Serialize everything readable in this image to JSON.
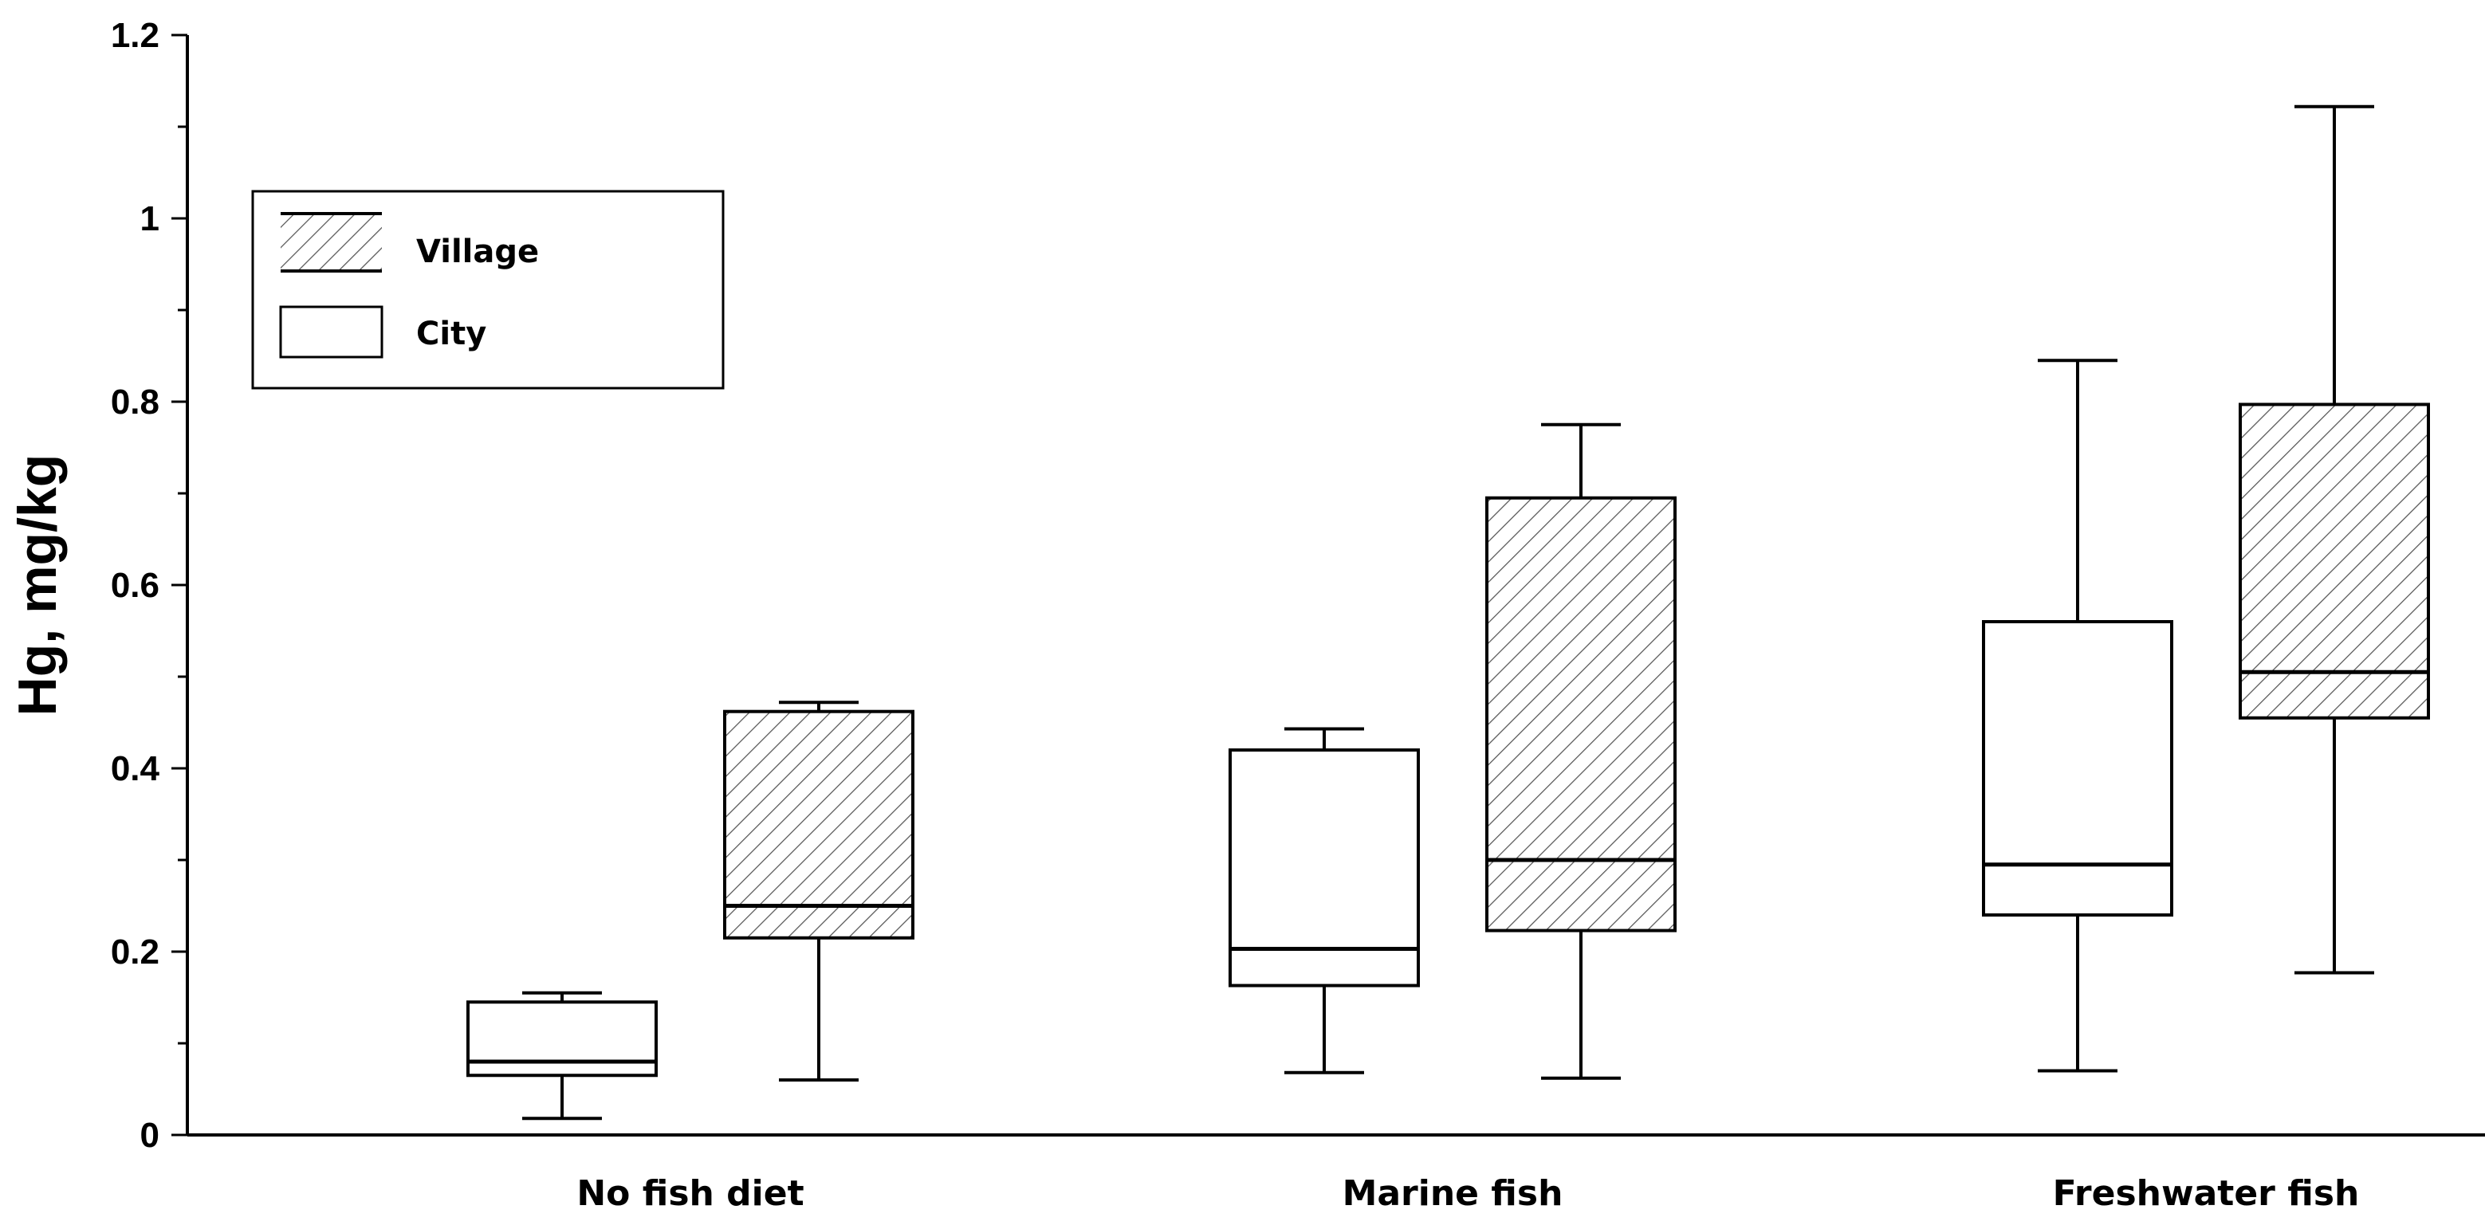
{
  "chart_data": {
    "type": "box",
    "ylabel": "Hg, mg/kg",
    "xlabel": "",
    "ylim": [
      0,
      1.2
    ],
    "yticks": [
      "0",
      "0.2",
      "0.4",
      "0.6",
      "0.8",
      "1",
      "1.2"
    ],
    "categories": [
      "No fish diet",
      "Marine fish",
      "Freshwater fish"
    ],
    "legend": {
      "position": "top-left",
      "entries": [
        {
          "name": "Village",
          "fill": "hatched"
        },
        {
          "name": "City",
          "fill": "empty"
        }
      ]
    },
    "series": [
      {
        "name": "City",
        "boxes": [
          {
            "min": 0.018,
            "q1": 0.065,
            "median": 0.08,
            "q3": 0.145,
            "max": 0.155
          },
          {
            "min": 0.068,
            "q1": 0.163,
            "median": 0.203,
            "q3": 0.42,
            "max": 0.443
          },
          {
            "min": 0.07,
            "q1": 0.24,
            "median": 0.295,
            "q3": 0.56,
            "max": 0.845
          }
        ]
      },
      {
        "name": "Village",
        "boxes": [
          {
            "min": 0.06,
            "q1": 0.215,
            "median": 0.25,
            "q3": 0.462,
            "max": 0.472
          },
          {
            "min": 0.062,
            "q1": 0.223,
            "median": 0.3,
            "q3": 0.695,
            "max": 0.775
          },
          {
            "min": 0.177,
            "q1": 0.455,
            "median": 0.505,
            "q3": 0.797,
            "max": 1.122
          }
        ]
      }
    ]
  }
}
